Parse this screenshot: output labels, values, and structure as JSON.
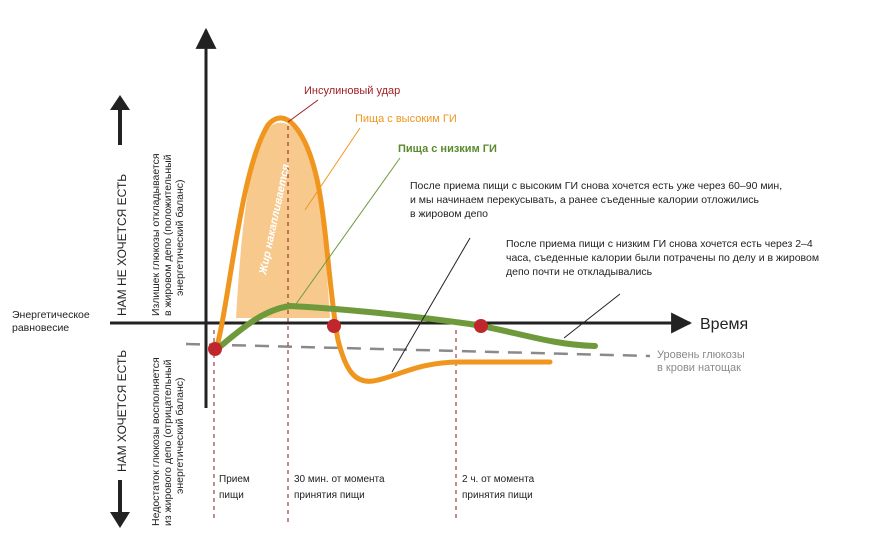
{
  "axes": {
    "x_label": "Время",
    "left_label": "Энергетическое равновесие"
  },
  "vertical_labels": {
    "upper_caps": "НАМ НЕ ХОЧЕТСЯ ЕСТЬ",
    "upper_small_1": "Излишек глюкозы откладывается",
    "upper_small_2": "в жировом депо (положительный",
    "upper_small_3": "энергетический баланс)",
    "lower_caps": "НАМ ХОЧЕТСЯ ЕСТЬ",
    "lower_small_1": "Недостаток глюкозы восполняется",
    "lower_small_2": "из жирового депо (отрицательный",
    "lower_small_3": "энергетический баланс)"
  },
  "labels": {
    "insulin_spike": "Инсулиновый удар",
    "high_gi": "Пища с высоким ГИ",
    "low_gi": "Пища с низким ГИ",
    "fat_accumulates": "Жир накапливается",
    "baseline_1": "Уровень глюкозы",
    "baseline_2": "в крови натощак"
  },
  "annotations": {
    "high_gi_1": "После приема пищи с высоким ГИ снова хочется есть уже через 60–90 мин,",
    "high_gi_2": "и мы начинаем перекусывать, а ранее съеденные калории отложились",
    "high_gi_3": "в жировом депо",
    "low_gi_1": "После приема пищи с низким ГИ снова хочется есть через 2–4",
    "low_gi_2": "часа, съеденные калории были потрачены по делу и в жировом",
    "low_gi_3": "депо почти не откладывались"
  },
  "time_markers": [
    {
      "line1": "Прием",
      "line2": "пищи"
    },
    {
      "line1": "30 мин. от момента",
      "line2": "принятия пищи"
    },
    {
      "line1": "2 ч. от момента",
      "line2": "принятия пищи"
    }
  ],
  "colors": {
    "high_gi": "#f0961e",
    "high_gi_fill": "#f7c98d",
    "low_gi": "#6e9a3c",
    "low_gi_label": "#5b8a2e",
    "insulin": "#a01e24",
    "marker": "#c0272d",
    "axis": "#222222",
    "dashed": "#8a8a8a",
    "time_lines": "#8b1a1a"
  }
}
